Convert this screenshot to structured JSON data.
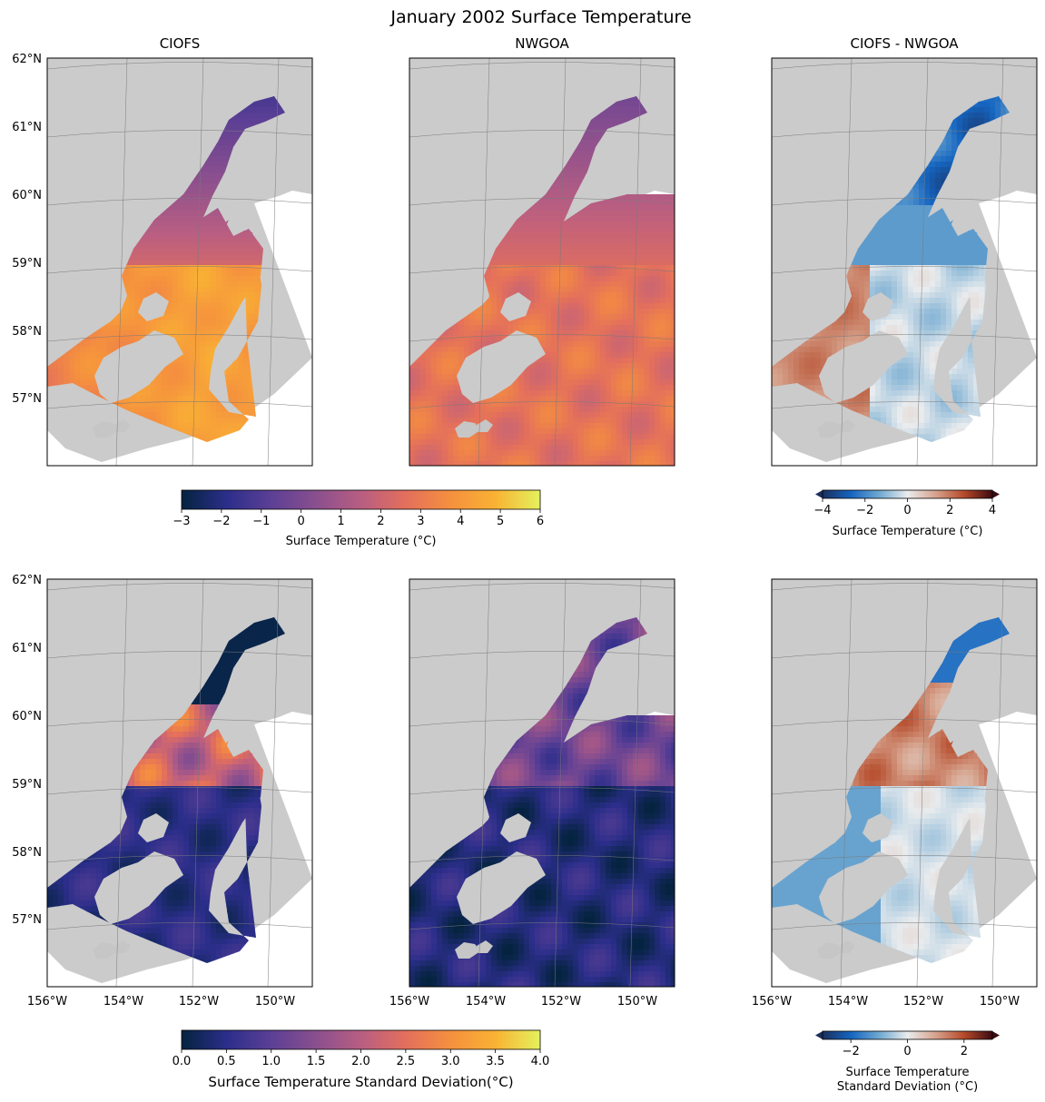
{
  "title": "January 2002 Surface Temperature",
  "chart_data": {
    "type": "heatmap",
    "map_extent": {
      "lon": [
        -156,
        -149
      ],
      "lat": [
        56,
        62
      ]
    },
    "lat_ticks": [
      "62°N",
      "61°N",
      "60°N",
      "59°N",
      "58°N",
      "57°N"
    ],
    "lon_ticks": [
      "156°W",
      "154°W",
      "152°W",
      "150°W"
    ],
    "panels": [
      {
        "row": 0,
        "col": 0,
        "title": "CIOFS",
        "field": "mean",
        "domain": "ciofs"
      },
      {
        "row": 0,
        "col": 1,
        "title": "NWGOA",
        "field": "mean",
        "domain": "nwgoa"
      },
      {
        "row": 0,
        "col": 2,
        "title": "CIOFS - NWGOA",
        "field": "diff",
        "domain": "ciofs"
      },
      {
        "row": 1,
        "col": 0,
        "title": "",
        "field": "std",
        "domain": "ciofs"
      },
      {
        "row": 1,
        "col": 1,
        "title": "",
        "field": "std",
        "domain": "nwgoa"
      },
      {
        "row": 1,
        "col": 2,
        "title": "",
        "field": "stddiff",
        "domain": "ciofs"
      }
    ],
    "colorbars": {
      "mean": {
        "label": "Surface Temperature (°C)",
        "range": [
          -3,
          6
        ],
        "ticks": [
          "−3",
          "−2",
          "−1",
          "0",
          "1",
          "2",
          "3",
          "4",
          "5",
          "6"
        ],
        "colormap": "thermal"
      },
      "diff": {
        "label": "Surface Temperature (°C)",
        "range": [
          -4,
          4
        ],
        "ticks": [
          "−4",
          "−2",
          "0",
          "2",
          "4"
        ],
        "colormap": "balance",
        "extend": "both"
      },
      "std": {
        "label": "Surface Temperature Standard Deviation(°C)",
        "range": [
          0,
          4
        ],
        "ticks": [
          "0.0",
          "0.5",
          "1.0",
          "1.5",
          "2.0",
          "2.5",
          "3.0",
          "3.5",
          "4.0"
        ],
        "colormap": "thermal"
      },
      "stddiff": {
        "label_line1": "Surface Temperature",
        "label_line2": "Standard Deviation (°C)",
        "range": [
          -3,
          3
        ],
        "ticks": [
          "−2",
          "0",
          "2"
        ],
        "colormap": "balance",
        "extend": "both"
      }
    },
    "colors": {
      "land": "#cbcbcb",
      "thermal": [
        "#04233e",
        "#2b2e8a",
        "#5c3f95",
        "#8a4f8e",
        "#b85e82",
        "#e36f5c",
        "#f5903e",
        "#f9b234",
        "#e4f25c"
      ],
      "balance": [
        "#1b2f5e",
        "#1565c0",
        "#6fa8d0",
        "#e9ecee",
        "#d6a28c",
        "#b54a2a",
        "#3d0a12"
      ]
    }
  }
}
